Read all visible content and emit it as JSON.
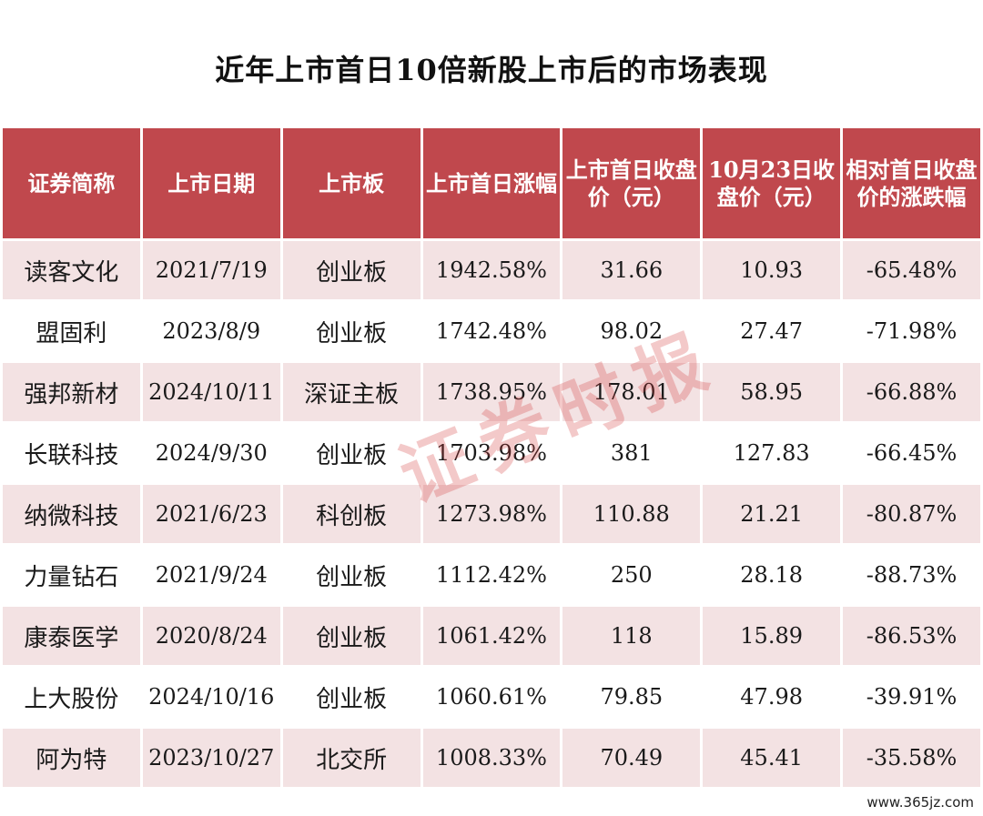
{
  "title": "近年上市首日10倍新股上市后的市场表现",
  "headers": [
    "证券简称",
    "上市日期",
    "上市板",
    "上市首日涨幅",
    "上市首日收盘价（元）",
    "10月23日收盘价（元）",
    "相对首日收盘价的涨跌幅"
  ],
  "rows": [
    {
      "name": "读客文化",
      "date": "2021/7/19",
      "board": "创业板",
      "gain": "1942.58%",
      "first_close": "31.66",
      "oct23_close": "10.93",
      "change": "-65.48%"
    },
    {
      "name": "盟固利",
      "date": "2023/8/9",
      "board": "创业板",
      "gain": "1742.48%",
      "first_close": "98.02",
      "oct23_close": "27.47",
      "change": "-71.98%"
    },
    {
      "name": "强邦新材",
      "date": "2024/10/11",
      "board": "深证主板",
      "gain": "1738.95%",
      "first_close": "178.01",
      "oct23_close": "58.95",
      "change": "-66.88%"
    },
    {
      "name": "长联科技",
      "date": "2024/9/30",
      "board": "创业板",
      "gain": "1703.98%",
      "first_close": "381",
      "oct23_close": "127.83",
      "change": "-66.45%"
    },
    {
      "name": "纳微科技",
      "date": "2021/6/23",
      "board": "科创板",
      "gain": "1273.98%",
      "first_close": "110.88",
      "oct23_close": "21.21",
      "change": "-80.87%"
    },
    {
      "name": "力量钻石",
      "date": "2021/9/24",
      "board": "创业板",
      "gain": "1112.42%",
      "first_close": "250",
      "oct23_close": "28.18",
      "change": "-88.73%"
    },
    {
      "name": "康泰医学",
      "date": "2020/8/24",
      "board": "创业板",
      "gain": "1061.42%",
      "first_close": "118",
      "oct23_close": "15.89",
      "change": "-86.53%"
    },
    {
      "name": "上大股份",
      "date": "2024/10/16",
      "board": "创业板",
      "gain": "1060.61%",
      "first_close": "79.85",
      "oct23_close": "47.98",
      "change": "-39.91%"
    },
    {
      "name": "阿为特",
      "date": "2023/10/27",
      "board": "北交所",
      "gain": "1008.33%",
      "first_close": "70.49",
      "oct23_close": "45.41",
      "change": "-35.58%"
    }
  ],
  "watermark": "证券时报",
  "corner_url": "www.365jz.com",
  "colors": {
    "header_bg": "#c0484d",
    "row_shade": "#f3e2e3"
  }
}
